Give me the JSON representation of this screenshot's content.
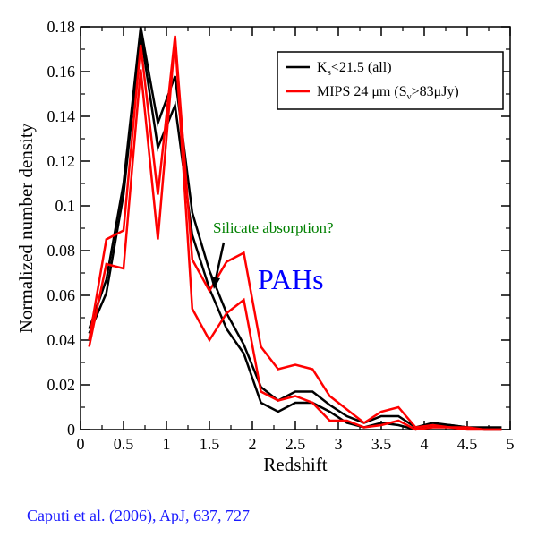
{
  "citation": "Caputi et al. (2006), ApJ, 637, 727",
  "colors": {
    "black_series": "#000000",
    "red_series": "#ff0000",
    "annotation_green": "#008000",
    "annotation_blue": "#0000ff",
    "citation_blue": "#1a1aff"
  },
  "chart_data": {
    "type": "line",
    "xlabel": "Redshift",
    "ylabel": "Normalized number density",
    "xlim": [
      0,
      5
    ],
    "ylim": [
      0,
      0.18
    ],
    "xticks": [
      0,
      0.5,
      1,
      1.5,
      2,
      2.5,
      3,
      3.5,
      4,
      4.5,
      5
    ],
    "xtick_labels": [
      "0",
      "0.5",
      "1",
      "1.5",
      "2",
      "2.5",
      "3",
      "3.5",
      "4",
      "4.5",
      "5"
    ],
    "yticks": [
      0,
      0.02,
      0.04,
      0.06,
      0.08,
      0.1,
      0.12,
      0.14,
      0.16,
      0.18
    ],
    "ytick_labels": [
      "0",
      "0.02",
      "0.04",
      "0.06",
      "0.08",
      "0.1",
      "0.12",
      "0.14",
      "0.16",
      "0.18"
    ],
    "grid": false,
    "legend_position": "top-right",
    "legend": [
      {
        "label_main": "K",
        "label_sub": "s",
        "label_rest": "<21.5  (all)",
        "color": "#000000"
      },
      {
        "label_main": "MIPS 24 μm (S",
        "label_sub": "ν",
        "label_rest": ">83μJy)",
        "color": "#ff0000"
      }
    ],
    "series": [
      {
        "color": "#000000",
        "x": [
          0.1,
          0.3,
          0.5,
          0.7,
          0.9,
          1.1,
          1.3,
          1.5,
          1.7,
          1.9,
          2.1,
          2.3,
          2.5,
          2.7,
          2.9,
          3.1,
          3.3,
          3.5,
          3.7,
          3.9,
          4.1,
          4.3,
          4.5,
          4.7,
          4.9
        ],
        "y": [
          0.045,
          0.067,
          0.11,
          0.18,
          0.137,
          0.158,
          0.097,
          0.071,
          0.052,
          0.038,
          0.019,
          0.013,
          0.017,
          0.017,
          0.011,
          0.006,
          0.003,
          0.006,
          0.006,
          0.001,
          0.003,
          0.002,
          0.001,
          0.001,
          0.001
        ]
      },
      {
        "color": "#000000",
        "x": [
          0.1,
          0.3,
          0.5,
          0.7,
          0.9,
          1.1,
          1.3,
          1.5,
          1.7,
          1.9,
          2.1,
          2.3,
          2.5,
          2.7,
          2.9,
          3.1,
          3.3,
          3.5,
          3.7,
          3.9,
          4.1,
          4.3,
          4.5,
          4.7,
          4.9
        ],
        "y": [
          0.043,
          0.061,
          0.105,
          0.177,
          0.126,
          0.145,
          0.087,
          0.063,
          0.045,
          0.034,
          0.012,
          0.008,
          0.012,
          0.012,
          0.008,
          0.003,
          0.001,
          0.003,
          0.002,
          0.0,
          0.002,
          0.002,
          0.001,
          0.0,
          0.0
        ]
      },
      {
        "color": "#ff0000",
        "x": [
          0.1,
          0.3,
          0.5,
          0.7,
          0.9,
          1.1,
          1.3,
          1.5,
          1.7,
          1.9,
          2.1,
          2.3,
          2.5,
          2.7,
          2.9,
          3.1,
          3.3,
          3.5,
          3.7,
          3.9,
          4.1,
          4.3,
          4.5,
          4.7,
          4.9
        ],
        "y": [
          0.04,
          0.085,
          0.089,
          0.172,
          0.105,
          0.176,
          0.076,
          0.062,
          0.075,
          0.079,
          0.037,
          0.027,
          0.029,
          0.027,
          0.015,
          0.009,
          0.003,
          0.008,
          0.01,
          0.001,
          0.002,
          0.001,
          0.001,
          0.0,
          0.0
        ]
      },
      {
        "color": "#ff0000",
        "x": [
          0.1,
          0.3,
          0.5,
          0.7,
          0.9,
          1.1,
          1.3,
          1.5,
          1.7,
          1.9,
          2.1,
          2.3,
          2.5,
          2.7,
          2.9,
          3.1,
          3.3,
          3.5,
          3.7,
          3.9,
          4.1,
          4.3,
          4.5,
          4.7,
          4.9
        ],
        "y": [
          0.037,
          0.074,
          0.072,
          0.161,
          0.085,
          0.175,
          0.054,
          0.04,
          0.052,
          0.058,
          0.017,
          0.013,
          0.015,
          0.012,
          0.004,
          0.004,
          0.001,
          0.002,
          0.004,
          0.0,
          0.001,
          0.001,
          0.0,
          0.0,
          0.0
        ]
      }
    ],
    "annotations": [
      {
        "text": "Silicate absorption?",
        "color": "#008000"
      },
      {
        "text": "PAHs",
        "color": "#0000ff"
      }
    ]
  }
}
